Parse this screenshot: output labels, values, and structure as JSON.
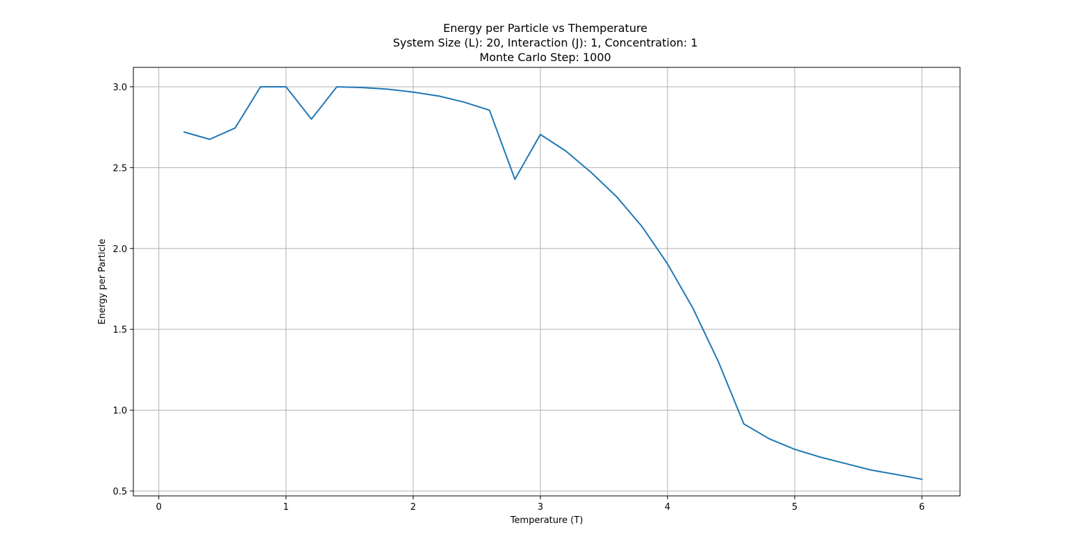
{
  "chart_data": {
    "type": "line",
    "title_lines": [
      "Energy per Particle vs Themperature",
      "System Size (L): 20, Interaction (J): 1, Concentration: 1",
      "Monte Carlo Step: 1000"
    ],
    "xlabel": "Temperature (T)",
    "ylabel": "Energy per Particle",
    "xlim": [
      -0.2,
      6.3
    ],
    "ylim": [
      0.47,
      3.12
    ],
    "xticks": [
      0,
      1,
      2,
      3,
      4,
      5,
      6
    ],
    "xtick_labels": [
      "0",
      "1",
      "2",
      "3",
      "4",
      "5",
      "6"
    ],
    "yticks": [
      0.5,
      1.0,
      1.5,
      2.0,
      2.5,
      3.0
    ],
    "ytick_labels": [
      "0.5",
      "1.0",
      "1.5",
      "2.0",
      "2.5",
      "3.0"
    ],
    "grid": true,
    "series": [
      {
        "color": "#1f77b4",
        "x": [
          0.2,
          0.4,
          0.6,
          0.8,
          1.0,
          1.2,
          1.4,
          1.6,
          1.8,
          2.0,
          2.2,
          2.4,
          2.6,
          2.8,
          3.0,
          3.2,
          3.4,
          3.6,
          3.8,
          4.0,
          4.2,
          4.4,
          4.6,
          4.8,
          5.0,
          5.2,
          5.4,
          5.6,
          5.8,
          6.0
        ],
        "y": [
          2.72,
          2.675,
          2.745,
          3.0,
          3.0,
          2.8,
          3.0,
          2.995,
          2.985,
          2.967,
          2.943,
          2.905,
          2.855,
          2.428,
          2.705,
          2.603,
          2.47,
          2.32,
          2.135,
          1.905,
          1.63,
          1.3,
          0.915,
          0.823,
          0.758,
          0.71,
          0.67,
          0.63,
          0.602,
          0.573
        ]
      }
    ]
  }
}
